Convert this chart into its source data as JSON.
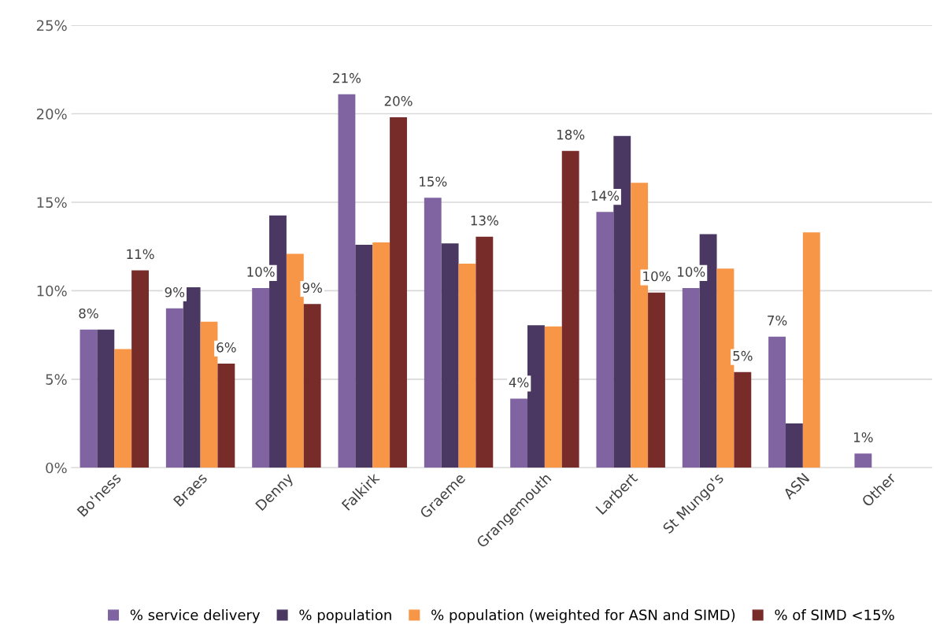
{
  "chart_data": {
    "type": "bar",
    "categories": [
      "Bo'ness",
      "Braes",
      "Denny",
      "Falkirk",
      "Graeme",
      "Grangemouth",
      "Larbert",
      "St Mungo's",
      "ASN",
      "Other"
    ],
    "series": [
      {
        "name": "% service delivery",
        "color": "#8064a2",
        "values": [
          7.8,
          9.0,
          10.15,
          21.1,
          15.25,
          3.9,
          14.45,
          10.15,
          7.4,
          0.8
        ],
        "value_labels": [
          "8%",
          "9%",
          "10%",
          "21%",
          "15%",
          "4%",
          "14%",
          "10%",
          "7%",
          "1%"
        ]
      },
      {
        "name": "% population",
        "color": "#4b3862",
        "values": [
          7.8,
          10.2,
          14.25,
          12.6,
          12.67,
          8.05,
          18.75,
          13.2,
          2.5,
          null
        ]
      },
      {
        "name": "% population (weighted for ASN and SIMD)",
        "color": "#f79646",
        "values": [
          6.7,
          8.25,
          12.08,
          12.73,
          11.53,
          7.98,
          16.1,
          11.25,
          13.3,
          null
        ]
      },
      {
        "name": "% of SIMD <15%",
        "color": "#772c2a",
        "values": [
          11.15,
          5.88,
          9.25,
          19.8,
          13.05,
          17.9,
          9.9,
          5.4,
          null,
          null
        ],
        "value_labels": [
          "11%",
          "6%",
          "9%",
          "20%",
          "13%",
          "18%",
          "10%",
          "5%",
          null,
          null
        ]
      }
    ],
    "ylim": [
      0,
      25
    ],
    "yticks": [
      {
        "value": 0,
        "label": "0%"
      },
      {
        "value": 5,
        "label": "5%"
      },
      {
        "value": 10,
        "label": "10%"
      },
      {
        "value": 15,
        "label": "15%"
      },
      {
        "value": 20,
        "label": "20%"
      },
      {
        "value": 25,
        "label": "25%"
      }
    ],
    "grid": "y",
    "legend": "bottom"
  }
}
